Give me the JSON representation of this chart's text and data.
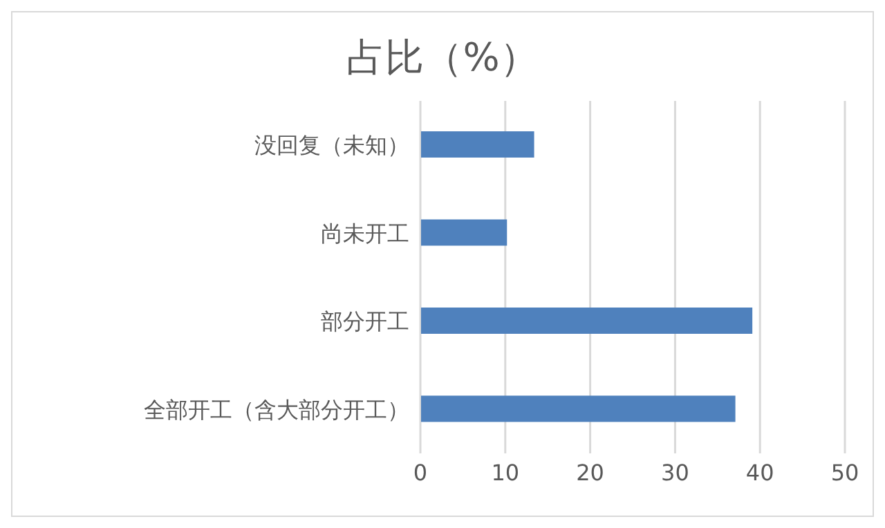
{
  "chart_data": {
    "type": "bar",
    "orientation": "horizontal",
    "title": "占比（%）",
    "categories": [
      "没回复（未知）",
      "尚未开工",
      "部分开工",
      "全部开工（含大部分开工）"
    ],
    "values": [
      13.4,
      10.2,
      39.1,
      37.1
    ],
    "color": "#4f81bd",
    "xlim": [
      0,
      50
    ],
    "xticks": [
      0,
      10,
      20,
      30,
      40,
      50
    ],
    "grid": "x",
    "legend": false
  }
}
